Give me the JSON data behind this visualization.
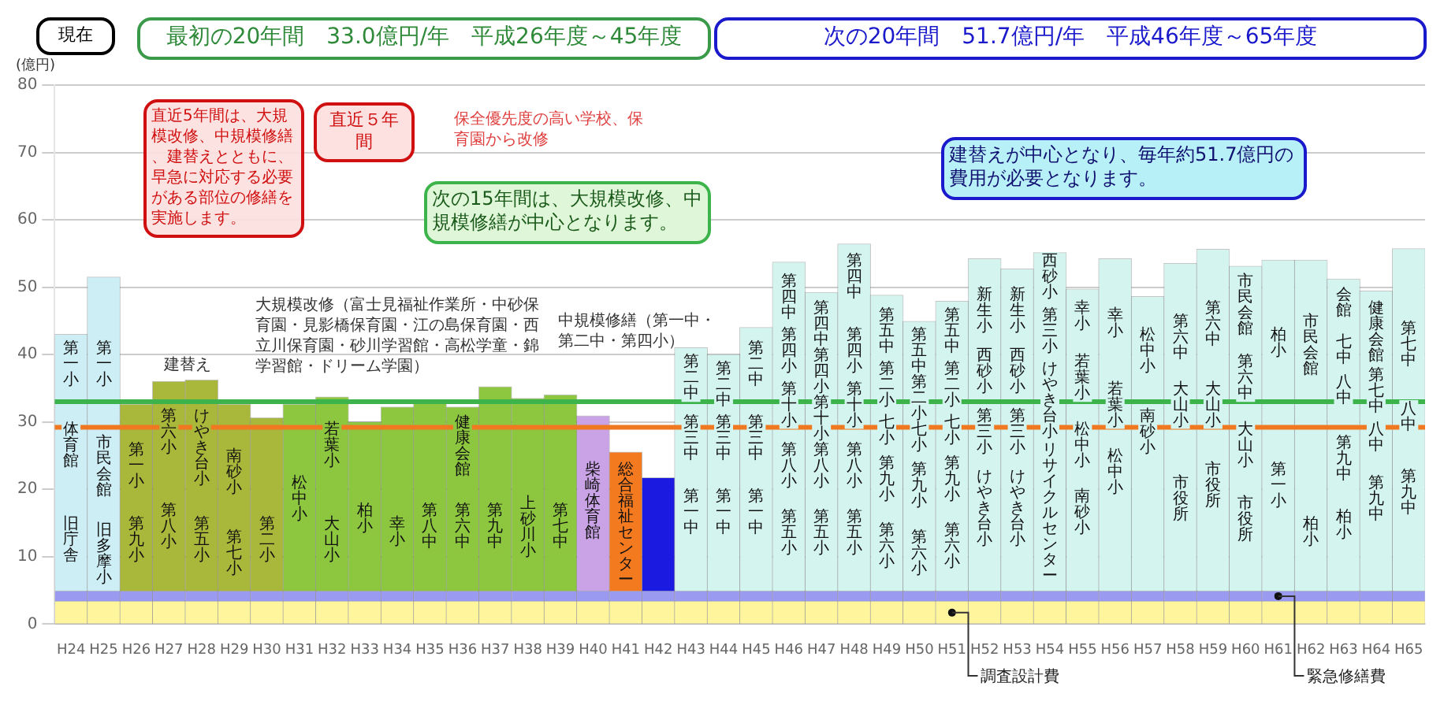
{
  "chart_data": {
    "type": "bar",
    "stacked": true,
    "ylabel": "(億円)",
    "grid": "y",
    "legend": false,
    "categories": [
      "H24",
      "H25",
      "H26",
      "H27",
      "H28",
      "H29",
      "H30",
      "H31",
      "H32",
      "H33",
      "H34",
      "H35",
      "H36",
      "H37",
      "H38",
      "H39",
      "H40",
      "H41",
      "H42",
      "H43",
      "H44",
      "H45",
      "H46",
      "H47",
      "H48",
      "H49",
      "H50",
      "H51",
      "H52",
      "H53",
      "H54",
      "H55",
      "H56",
      "H57",
      "H58",
      "H59",
      "H60",
      "H61",
      "H62",
      "H63",
      "H64",
      "H65"
    ],
    "ylim": [
      0,
      80
    ],
    "yticks": [
      0,
      10,
      20,
      30,
      40,
      50,
      60,
      70,
      80
    ],
    "series": [
      {
        "name": "調査設計費",
        "color": "#fff59d",
        "values": [
          3.4,
          3.4,
          3.4,
          3.4,
          3.4,
          3.4,
          3.4,
          3.4,
          3.4,
          3.4,
          3.4,
          3.4,
          3.4,
          3.4,
          3.4,
          3.4,
          3.4,
          3.4,
          3.4,
          3.4,
          3.4,
          3.4,
          3.4,
          3.4,
          3.4,
          3.4,
          3.4,
          3.4,
          3.4,
          3.4,
          3.4,
          3.4,
          3.4,
          3.4,
          3.4,
          3.4,
          3.4,
          3.4,
          3.4,
          3.4,
          3.4,
          3.4
        ]
      },
      {
        "name": "緊急修繕費",
        "color": "#9a9af0",
        "values": [
          1.5,
          1.5,
          1.5,
          1.5,
          1.5,
          1.5,
          1.5,
          1.5,
          1.5,
          1.5,
          1.5,
          1.5,
          1.5,
          1.5,
          1.5,
          1.5,
          1.5,
          1.5,
          1.5,
          1.5,
          1.5,
          1.5,
          1.5,
          1.5,
          1.5,
          1.5,
          1.5,
          1.5,
          1.5,
          1.5,
          1.5,
          1.5,
          1.5,
          1.5,
          1.5,
          1.5,
          1.5,
          1.5,
          1.5,
          1.5,
          1.5,
          1.5
        ]
      },
      {
        "colors": [
          "#cdeef5",
          "#cdeef5",
          "#a9b83a",
          "#a9b83a",
          "#a9b83a",
          "#a9b83a",
          "#a9b83a",
          "#8dc63f",
          "#8dc63f",
          "#8dc63f",
          "#8dc63f",
          "#8dc63f",
          "#8dc63f",
          "#8dc63f",
          "#8dc63f",
          "#8dc63f",
          "#c9a3e6",
          "#f47a20",
          "#1a1ae0",
          "#d4f4ef",
          "#d4f4ef",
          "#d4f4ef",
          "#d4f4ef",
          "#d4f4ef",
          "#d4f4ef",
          "#d4f4ef",
          "#d4f4ef",
          "#d4f4ef",
          "#d4f4ef",
          "#d4f4ef",
          "#d4f4ef",
          "#d4f4ef",
          "#d4f4ef",
          "#d4f4ef",
          "#d4f4ef",
          "#d4f4ef",
          "#d4f4ef",
          "#d4f4ef",
          "#d4f4ef",
          "#d4f4ef",
          "#d4f4ef",
          "#d4f4ef"
        ],
        "values": [
          38.1,
          46.6,
          27.7,
          31.1,
          31.3,
          27.7,
          25.7,
          27.7,
          28.8,
          25.1,
          27.3,
          28.1,
          27.3,
          30.3,
          28.6,
          29.1,
          26.0,
          20.6,
          16.8,
          36.1,
          35.1,
          39.1,
          48.8,
          44.3,
          51.5,
          43.9,
          40.0,
          43.0,
          49.3,
          47.8,
          50.2,
          44.8,
          49.3,
          43.7,
          48.6,
          50.7,
          48.2,
          49.1,
          49.1,
          46.3,
          44.5,
          50.8
        ]
      }
    ],
    "ref_lines": [
      {
        "axis": "y",
        "value": 33.0,
        "color": "#3cb44b"
      },
      {
        "axis": "y",
        "value": 29.2,
        "color": "#f07820"
      }
    ],
    "annotations": [
      "現在",
      "最初の20年間　33.0億円/年　平成26年度～45年度",
      "次の20年間　51.7億円/年　平成46年度～65年度",
      "直近5年間は、大規模改修、中規模修繕、建替えとともに、早急に対応する必要がある部位の修繕を実施します。",
      "直近５年間",
      "保全優先度の高い学校、保育園から改修",
      "次の15年間は、大規模改修、中規模修繕が中心となります。",
      "建替えが中心となり、毎年約51.7億円の費用が必要となります。",
      "大規模改修（富士見福祉作業所・中砂保育園・見影橋保育園・江の島保育園・西立川保育園・砂川学習館・高松学童・錦学習館・ドリーム学園）",
      "建替え",
      "中規模修繕（第一中・第二中・第四小）",
      "第一小",
      "体育館",
      "旧庁舎",
      "第一小",
      "市民会館",
      "旧多摩小",
      "第一小",
      "第九小",
      "第六小",
      "第八小",
      "けやき台小",
      "第五小",
      "南砂小",
      "第七小",
      "第二小",
      "松中小",
      "若葉小",
      "大山小",
      "柏小",
      "幸小",
      "第八中",
      "健康会館",
      "第六中",
      "第九中",
      "上砂川小",
      "第七中",
      "柴崎体育館",
      "総合福祉センター",
      "第二中",
      "第三中",
      "第一中",
      "第二中",
      "第三中",
      "第一中",
      "第二中",
      "第三中",
      "第一中",
      "第四中",
      "第四小",
      "第十小",
      "第八小",
      "第五小",
      "第四中",
      "第四小",
      "第十小",
      "第八小",
      "第五小",
      "第四中",
      "第四小",
      "第十小",
      "第八小",
      "第五小",
      "第五中",
      "第二小",
      "七小",
      "第九小",
      "第六小",
      "第五中",
      "第二小",
      "七小",
      "第九小",
      "第六小",
      "第五中",
      "第二小",
      "七小",
      "第九小",
      "第六小",
      "新生小",
      "西砂小",
      "第三小",
      "けやき台小",
      "新生小",
      "西砂小",
      "第三小",
      "けやき台小",
      "西砂小",
      "第三小",
      "けやき台小",
      "リサイクルセンター",
      "幸小",
      "若葉小",
      "松中小",
      "南砂小",
      "幸小",
      "若葉小",
      "松中小",
      "松中小",
      "南砂小",
      "第六中",
      "大山小",
      "市役所",
      "第六中",
      "大山小",
      "市役所",
      "市民会館",
      "第六中",
      "大山小",
      "市役所",
      "柏小",
      "第一小",
      "市民会館",
      "柏小",
      "会館",
      "七中",
      "八中",
      "第九中",
      "柏小",
      "健康会館",
      "第七中",
      "八中",
      "第九中",
      "第七中",
      "八中",
      "第九中"
    ]
  }
}
